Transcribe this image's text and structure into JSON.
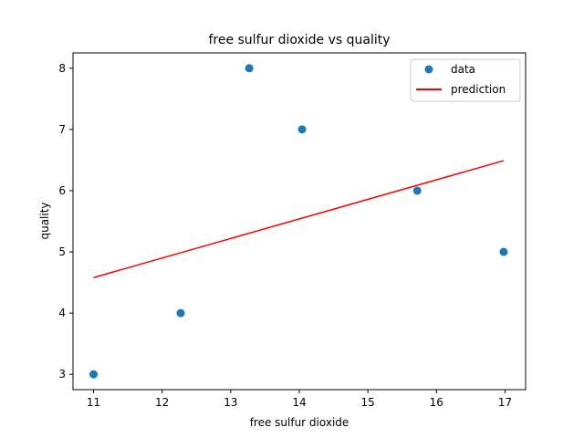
{
  "chart_data": {
    "type": "scatter",
    "title": "free sulfur dioxide vs quality",
    "xlabel": "free sulfur dioxide",
    "ylabel": "quality",
    "xlim": [
      10.7,
      17.3
    ],
    "ylim": [
      2.75,
      8.25
    ],
    "xticks": [
      11,
      12,
      13,
      14,
      15,
      16,
      17
    ],
    "yticks": [
      3,
      4,
      5,
      6,
      7,
      8
    ],
    "grid": false,
    "legend_position": "top-right",
    "series": [
      {
        "name": "data",
        "kind": "scatter",
        "color": "#1f77b4",
        "points": [
          {
            "x": 11.0,
            "y": 3
          },
          {
            "x": 12.27,
            "y": 4
          },
          {
            "x": 13.27,
            "y": 8
          },
          {
            "x": 14.04,
            "y": 7
          },
          {
            "x": 15.72,
            "y": 6
          },
          {
            "x": 16.98,
            "y": 5
          }
        ]
      },
      {
        "name": "prediction",
        "kind": "line",
        "color": "#ff0000",
        "points": [
          {
            "x": 11.0,
            "y": 4.58
          },
          {
            "x": 16.98,
            "y": 6.49
          }
        ]
      }
    ]
  }
}
